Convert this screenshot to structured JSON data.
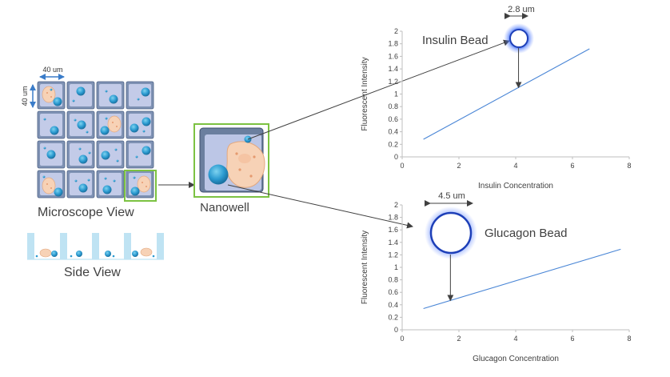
{
  "left_panel": {
    "width_dim": "40 um",
    "height_dim": "40 um",
    "microscope_label": "Microscope View",
    "side_label": "Side View"
  },
  "nanowell": {
    "label": "Nanowell"
  },
  "insulin": {
    "bead_label": "Insulin Bead",
    "bead_dim": "2.8 um",
    "chart_data": {
      "type": "line",
      "xlabel": "Insulin Concentration",
      "ylabel": "Fluorescent   Intensity",
      "xlim": [
        0,
        8
      ],
      "ylim": [
        0,
        2
      ],
      "xticks": [
        "0",
        "2",
        "4",
        "6",
        "8"
      ],
      "yticks": [
        "0",
        "0.2",
        "0.4",
        "0.6",
        "0.8",
        "1",
        "1.2",
        "1.4",
        "1.6",
        "1.8",
        "2"
      ],
      "series": [
        {
          "x": [
            0.75,
            6.6
          ],
          "y": [
            0.28,
            1.72
          ]
        }
      ],
      "readout_x": 4.1
    }
  },
  "glucagon": {
    "bead_label": "Glucagon Bead",
    "bead_dim": "4.5 um",
    "chart_data": {
      "type": "line",
      "xlabel": "Glucagon Concentration",
      "ylabel": "Fluorescent Intensity",
      "xlim": [
        0,
        8
      ],
      "ylim": [
        0,
        2
      ],
      "xticks": [
        "0",
        "2",
        "4",
        "6",
        "8"
      ],
      "yticks": [
        "0",
        "0.2",
        "0.4",
        "0.6",
        "0.8",
        "1",
        "1.2",
        "1.4",
        "1.6",
        "1.8",
        "2"
      ],
      "series": [
        {
          "x": [
            0.75,
            7.7
          ],
          "y": [
            0.34,
            1.29
          ]
        }
      ],
      "readout_x": 1.7
    }
  }
}
